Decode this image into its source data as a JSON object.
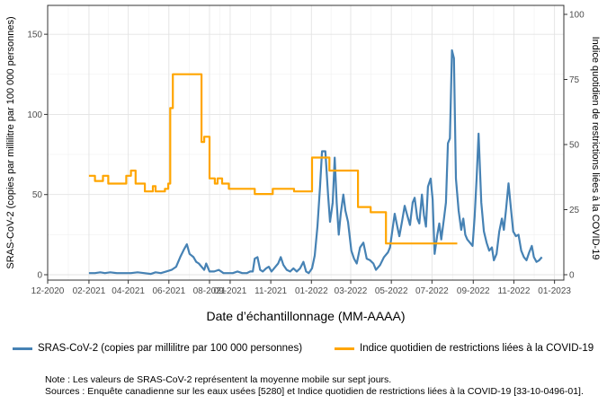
{
  "chart_data": {
    "type": "line",
    "xlabel": "Date d’échantillonnage (MM-AAAA)",
    "ylabel": "SRAS-CoV-2 (copies par millilitre par 100 000 personnes)",
    "y2label": "Indice quotidien de restrictions liées à la COVID-19",
    "x_ticks": [
      "12-2020",
      "02-2021",
      "04-2021",
      "06-2021",
      "08-2021",
      "09-2021",
      "11-2021",
      "01-2022",
      "03-2022",
      "05-2022",
      "07-2022",
      "09-2022",
      "11-2022",
      "01-2023"
    ],
    "y_ticks": [
      0,
      50,
      100,
      150
    ],
    "y2_ticks": [
      0,
      25,
      50,
      75,
      100
    ],
    "ylim": [
      0,
      168
    ],
    "y2lim": [
      0,
      100
    ],
    "xlim": [
      "2020-12-01",
      "2023-01-15"
    ],
    "grid": true,
    "legend_position": "bottom",
    "series": [
      {
        "name": "SRAS-CoV-2 (copies par millilitre par 100 000 personnes)",
        "axis": "left",
        "color": "#4682b4",
        "points": [
          [
            "2021-02-01",
            1
          ],
          [
            "2021-02-10",
            1
          ],
          [
            "2021-02-18",
            1.5
          ],
          [
            "2021-02-25",
            1
          ],
          [
            "2021-03-05",
            1.5
          ],
          [
            "2021-03-15",
            1
          ],
          [
            "2021-03-25",
            1
          ],
          [
            "2021-04-05",
            1
          ],
          [
            "2021-04-15",
            1.5
          ],
          [
            "2021-04-25",
            1
          ],
          [
            "2021-05-05",
            0.5
          ],
          [
            "2021-05-12",
            1.5
          ],
          [
            "2021-05-20",
            1
          ],
          [
            "2021-05-28",
            2
          ],
          [
            "2021-06-05",
            3
          ],
          [
            "2021-06-12",
            5
          ],
          [
            "2021-06-18",
            11
          ],
          [
            "2021-06-24",
            16
          ],
          [
            "2021-06-28",
            19
          ],
          [
            "2021-07-02",
            13
          ],
          [
            "2021-07-08",
            11
          ],
          [
            "2021-07-12",
            8
          ],
          [
            "2021-07-16",
            7
          ],
          [
            "2021-07-20",
            5
          ],
          [
            "2021-07-24",
            3
          ],
          [
            "2021-07-27",
            7
          ],
          [
            "2021-08-01",
            2
          ],
          [
            "2021-08-08",
            2
          ],
          [
            "2021-08-15",
            3
          ],
          [
            "2021-08-22",
            1
          ],
          [
            "2021-08-29",
            1
          ],
          [
            "2021-09-05",
            1
          ],
          [
            "2021-09-12",
            2
          ],
          [
            "2021-09-19",
            1
          ],
          [
            "2021-09-26",
            1
          ],
          [
            "2021-10-01",
            2
          ],
          [
            "2021-10-05",
            2
          ],
          [
            "2021-10-08",
            10
          ],
          [
            "2021-10-12",
            11
          ],
          [
            "2021-10-16",
            3
          ],
          [
            "2021-10-20",
            2
          ],
          [
            "2021-10-25",
            4
          ],
          [
            "2021-10-29",
            5
          ],
          [
            "2021-11-02",
            2
          ],
          [
            "2021-11-06",
            4
          ],
          [
            "2021-11-12",
            7
          ],
          [
            "2021-11-16",
            11
          ],
          [
            "2021-11-20",
            6
          ],
          [
            "2021-11-25",
            3
          ],
          [
            "2021-11-30",
            2
          ],
          [
            "2021-12-05",
            4
          ],
          [
            "2021-12-10",
            2
          ],
          [
            "2021-12-15",
            4
          ],
          [
            "2021-12-20",
            8
          ],
          [
            "2021-12-24",
            2
          ],
          [
            "2021-12-28",
            1
          ],
          [
            "2022-01-02",
            4
          ],
          [
            "2022-01-06",
            12
          ],
          [
            "2022-01-10",
            30
          ],
          [
            "2022-01-14",
            55
          ],
          [
            "2022-01-17",
            77
          ],
          [
            "2022-01-22",
            77
          ],
          [
            "2022-01-26",
            50
          ],
          [
            "2022-01-29",
            33
          ],
          [
            "2022-02-02",
            45
          ],
          [
            "2022-02-05",
            73
          ],
          [
            "2022-02-08",
            45
          ],
          [
            "2022-02-11",
            25
          ],
          [
            "2022-02-14",
            38
          ],
          [
            "2022-02-18",
            50
          ],
          [
            "2022-02-21",
            40
          ],
          [
            "2022-02-25",
            33
          ],
          [
            "2022-03-02",
            15
          ],
          [
            "2022-03-06",
            10
          ],
          [
            "2022-03-10",
            7
          ],
          [
            "2022-03-15",
            17
          ],
          [
            "2022-03-20",
            20
          ],
          [
            "2022-03-25",
            10
          ],
          [
            "2022-03-30",
            9
          ],
          [
            "2022-04-04",
            7
          ],
          [
            "2022-04-08",
            3
          ],
          [
            "2022-04-14",
            6
          ],
          [
            "2022-04-20",
            11
          ],
          [
            "2022-04-26",
            14
          ],
          [
            "2022-04-29",
            17
          ],
          [
            "2022-05-02",
            26
          ],
          [
            "2022-05-06",
            38
          ],
          [
            "2022-05-10",
            30
          ],
          [
            "2022-05-13",
            24
          ],
          [
            "2022-05-17",
            33
          ],
          [
            "2022-05-21",
            43
          ],
          [
            "2022-05-25",
            37
          ],
          [
            "2022-05-29",
            31
          ],
          [
            "2022-06-02",
            45
          ],
          [
            "2022-06-05",
            48
          ],
          [
            "2022-06-09",
            35
          ],
          [
            "2022-06-12",
            32
          ],
          [
            "2022-06-16",
            50
          ],
          [
            "2022-06-19",
            37
          ],
          [
            "2022-06-22",
            30
          ],
          [
            "2022-06-25",
            55
          ],
          [
            "2022-06-29",
            60
          ],
          [
            "2022-07-02",
            47
          ],
          [
            "2022-07-05",
            13
          ],
          [
            "2022-07-09",
            25
          ],
          [
            "2022-07-12",
            32
          ],
          [
            "2022-07-15",
            22
          ],
          [
            "2022-07-19",
            35
          ],
          [
            "2022-07-22",
            45
          ],
          [
            "2022-07-25",
            82
          ],
          [
            "2022-07-28",
            85
          ],
          [
            "2022-07-31",
            140
          ],
          [
            "2022-08-03",
            135
          ],
          [
            "2022-08-06",
            60
          ],
          [
            "2022-08-10",
            40
          ],
          [
            "2022-08-14",
            28
          ],
          [
            "2022-08-17",
            35
          ],
          [
            "2022-08-20",
            25
          ],
          [
            "2022-08-23",
            22
          ],
          [
            "2022-08-27",
            20
          ],
          [
            "2022-08-31",
            18
          ],
          [
            "2022-09-03",
            36
          ],
          [
            "2022-09-06",
            60
          ],
          [
            "2022-09-09",
            88
          ],
          [
            "2022-09-13",
            45
          ],
          [
            "2022-09-17",
            27
          ],
          [
            "2022-09-21",
            20
          ],
          [
            "2022-09-25",
            15
          ],
          [
            "2022-09-29",
            17
          ],
          [
            "2022-10-02",
            9
          ],
          [
            "2022-10-06",
            13
          ],
          [
            "2022-10-10",
            27
          ],
          [
            "2022-10-14",
            35
          ],
          [
            "2022-10-17",
            28
          ],
          [
            "2022-10-20",
            40
          ],
          [
            "2022-10-24",
            57
          ],
          [
            "2022-10-27",
            44
          ],
          [
            "2022-10-31",
            27
          ],
          [
            "2022-11-04",
            24
          ],
          [
            "2022-11-08",
            25
          ],
          [
            "2022-11-12",
            15
          ],
          [
            "2022-11-16",
            11
          ],
          [
            "2022-11-20",
            9
          ],
          [
            "2022-11-24",
            14
          ],
          [
            "2022-11-28",
            18
          ],
          [
            "2022-12-01",
            11
          ],
          [
            "2022-12-05",
            8
          ],
          [
            "2022-12-09",
            9
          ],
          [
            "2022-12-13",
            11
          ]
        ]
      },
      {
        "name": "Indice quotidien de restrictions liées à la COVID-19",
        "axis": "right",
        "color": "#ffa500",
        "points": [
          [
            "2021-02-01",
            38
          ],
          [
            "2021-02-10",
            38
          ],
          [
            "2021-02-10",
            36
          ],
          [
            "2021-02-22",
            36
          ],
          [
            "2021-02-22",
            38
          ],
          [
            "2021-03-02",
            38
          ],
          [
            "2021-03-02",
            35
          ],
          [
            "2021-03-29",
            35
          ],
          [
            "2021-03-29",
            38
          ],
          [
            "2021-04-05",
            38
          ],
          [
            "2021-04-05",
            40
          ],
          [
            "2021-04-12",
            40
          ],
          [
            "2021-04-12",
            35
          ],
          [
            "2021-04-26",
            35
          ],
          [
            "2021-04-26",
            32
          ],
          [
            "2021-05-08",
            32
          ],
          [
            "2021-05-08",
            34
          ],
          [
            "2021-05-12",
            34
          ],
          [
            "2021-05-12",
            32
          ],
          [
            "2021-05-26",
            32
          ],
          [
            "2021-05-26",
            33
          ],
          [
            "2021-05-31",
            33
          ],
          [
            "2021-05-31",
            35
          ],
          [
            "2021-06-03",
            35
          ],
          [
            "2021-06-03",
            64
          ],
          [
            "2021-06-07",
            64
          ],
          [
            "2021-06-07",
            77
          ],
          [
            "2021-07-20",
            77
          ],
          [
            "2021-07-20",
            51
          ],
          [
            "2021-07-24",
            51
          ],
          [
            "2021-07-24",
            53
          ],
          [
            "2021-08-01",
            53
          ],
          [
            "2021-08-01",
            37
          ],
          [
            "2021-08-09",
            37
          ],
          [
            "2021-08-09",
            35
          ],
          [
            "2021-08-13",
            35
          ],
          [
            "2021-08-13",
            37
          ],
          [
            "2021-08-20",
            37
          ],
          [
            "2021-08-20",
            35
          ],
          [
            "2021-08-30",
            35
          ],
          [
            "2021-08-30",
            33
          ],
          [
            "2021-10-08",
            33
          ],
          [
            "2021-10-08",
            31
          ],
          [
            "2021-11-04",
            31
          ],
          [
            "2021-11-04",
            33
          ],
          [
            "2021-12-06",
            33
          ],
          [
            "2021-12-06",
            32
          ],
          [
            "2022-01-02",
            32
          ],
          [
            "2022-01-02",
            45
          ],
          [
            "2022-01-28",
            45
          ],
          [
            "2022-01-28",
            40
          ],
          [
            "2022-03-12",
            40
          ],
          [
            "2022-03-12",
            26
          ],
          [
            "2022-03-31",
            26
          ],
          [
            "2022-03-31",
            24
          ],
          [
            "2022-04-23",
            24
          ],
          [
            "2022-04-23",
            12
          ],
          [
            "2022-08-08",
            12
          ]
        ]
      }
    ]
  },
  "legend": [
    {
      "label": "SRAS-CoV-2 (copies par millilitre par 100 000 personnes)",
      "color": "#4682b4"
    },
    {
      "label": "Indice quotidien de restrictions liées à la COVID-19",
      "color": "#ffa500"
    }
  ],
  "notes": {
    "note": "Note : Les valeurs de SRAS-CoV-2 représentent la moyenne mobile sur sept jours.",
    "sources": "Sources : Enquête canadienne sur les eaux usées [5280] et Indice quotidien de restrictions liées à la COVID-19 [33-10-0496-01]."
  }
}
